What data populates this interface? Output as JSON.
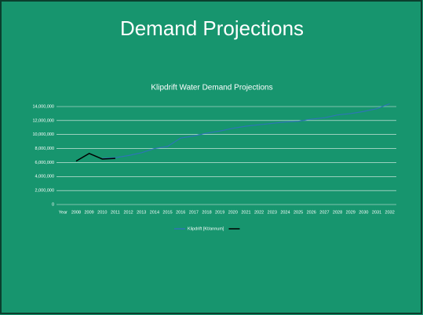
{
  "slide_title": "Demand Projections",
  "chart_data": {
    "type": "line",
    "title": "Klipdrift Water Demand Projections",
    "categories": [
      "Year",
      "2008",
      "2009",
      "2010",
      "2011",
      "2012",
      "2013",
      "2014",
      "2015",
      "2016",
      "2017",
      "2018",
      "2019",
      "2020",
      "2021",
      "2022",
      "2023",
      "2024",
      "2025",
      "2026",
      "2027",
      "2028",
      "2029",
      "2030",
      "2031",
      "2032"
    ],
    "series": [
      {
        "name": "Klipdrift [Kt/annum]",
        "color": "#2e75b6",
        "values": [
          null,
          null,
          null,
          6600000,
          6700000,
          7000000,
          7400000,
          8000000,
          8300000,
          9500000,
          9800000,
          10200000,
          10500000,
          10900000,
          11200000,
          11400000,
          11600000,
          11800000,
          11900000,
          12200000,
          12400000,
          12800000,
          13000000,
          13300000,
          13700000,
          14400000
        ]
      },
      {
        "color": "#000000",
        "values": [
          null,
          6200000,
          7300000,
          6500000,
          6600000,
          null,
          null,
          null,
          null,
          null,
          null,
          null,
          null,
          null,
          null,
          null,
          null,
          null,
          null,
          null,
          null,
          null,
          null,
          null,
          null,
          null
        ]
      }
    ],
    "ylim": [
      0,
      14000000
    ],
    "yticks": [
      0,
      {
        "value": 2000000,
        "label": "2,000,000"
      },
      {
        "value": 4000000,
        "label": "4,000,000"
      },
      {
        "value": 6000000,
        "label": "6,000,000"
      },
      {
        "value": 8000000,
        "label": "8,000,000"
      },
      {
        "value": 10000000,
        "label": "10,000,000"
      },
      {
        "value": 12000000,
        "label": "12,000,000"
      },
      {
        "value": 14000000,
        "label": "14,000,000"
      }
    ],
    "grid": true,
    "legend": "bottom"
  }
}
